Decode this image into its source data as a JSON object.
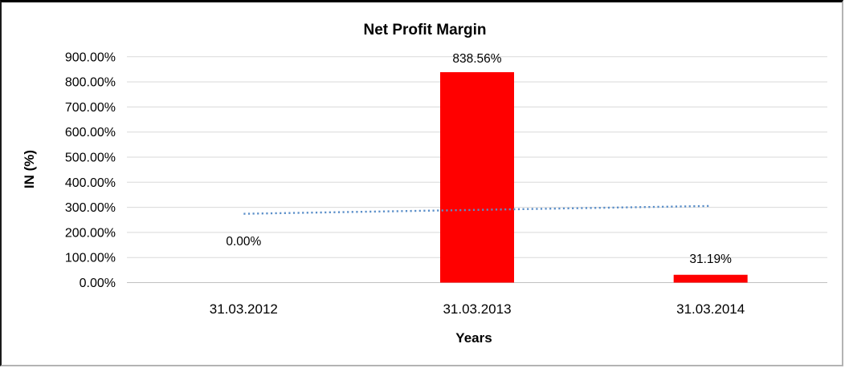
{
  "chart_data": {
    "type": "bar",
    "title": "Net Profit Margin",
    "xlabel": "Years",
    "ylabel": "IN (%)",
    "categories": [
      "31.03.2012",
      "31.03.2013",
      "31.03.2014"
    ],
    "series": [
      {
        "name": "Net Profit Margin",
        "values": [
          0,
          838.56,
          31.19
        ]
      }
    ],
    "data_labels": [
      "0.00%",
      "838.56%",
      "31.19%"
    ],
    "ytick_labels": [
      "0.00%",
      "100.00%",
      "200.00%",
      "300.00%",
      "400.00%",
      "500.00%",
      "600.00%",
      "700.00%",
      "800.00%",
      "900.00%"
    ],
    "ytick_values": [
      0,
      100,
      200,
      300,
      400,
      500,
      600,
      700,
      800,
      900
    ],
    "ylim": [
      0,
      900
    ],
    "grid": true,
    "legend": "none",
    "colors": {
      "bar": "#FF0000",
      "trendline": "#5B8FC9",
      "gridline": "#D9D9D9",
      "baseline": "#C0C0C0",
      "text": "#000000"
    },
    "trendline": {
      "type": "linear",
      "style": "dotted",
      "start_value": 274.3,
      "end_value": 305.5
    }
  }
}
